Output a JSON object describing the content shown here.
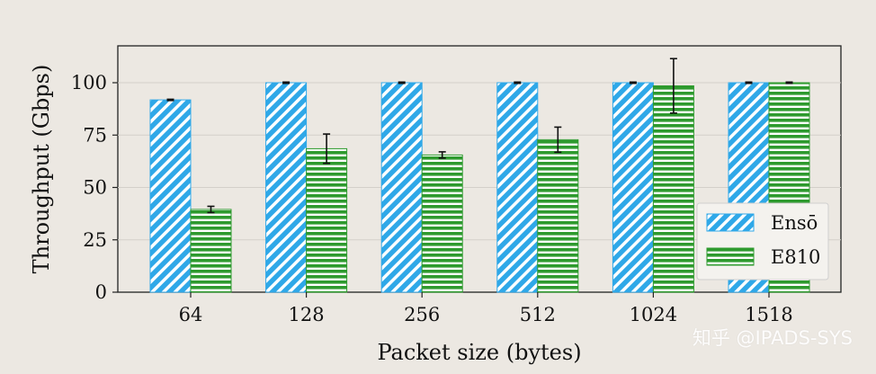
{
  "chart_data": {
    "type": "bar",
    "categories": [
      "64",
      "128",
      "256",
      "512",
      "1024",
      "1518"
    ],
    "series": [
      {
        "name": "Ensō",
        "values": [
          91.8,
          100,
          100,
          100,
          100,
          100
        ],
        "err": [
          0.3,
          0.3,
          0.3,
          0.3,
          0.3,
          0.3
        ],
        "color": "#2fa8e8",
        "hatch": "diagonal"
      },
      {
        "name": "E810",
        "values": [
          39.5,
          68.5,
          65.5,
          72.8,
          98.5,
          100
        ],
        "err": [
          1.5,
          7,
          1.5,
          6,
          13,
          0.3
        ],
        "color": "#2e9a2e",
        "hatch": "horizontal"
      }
    ],
    "xlabel": "Packet size (bytes)",
    "ylabel": "Throughput (Gbps)",
    "ylim": [
      0,
      100
    ],
    "yticks": [
      "0",
      "25",
      "50",
      "75",
      "100"
    ],
    "grid": true,
    "legend_position": "right"
  },
  "watermark": "知乎 @IPADS-SYS"
}
